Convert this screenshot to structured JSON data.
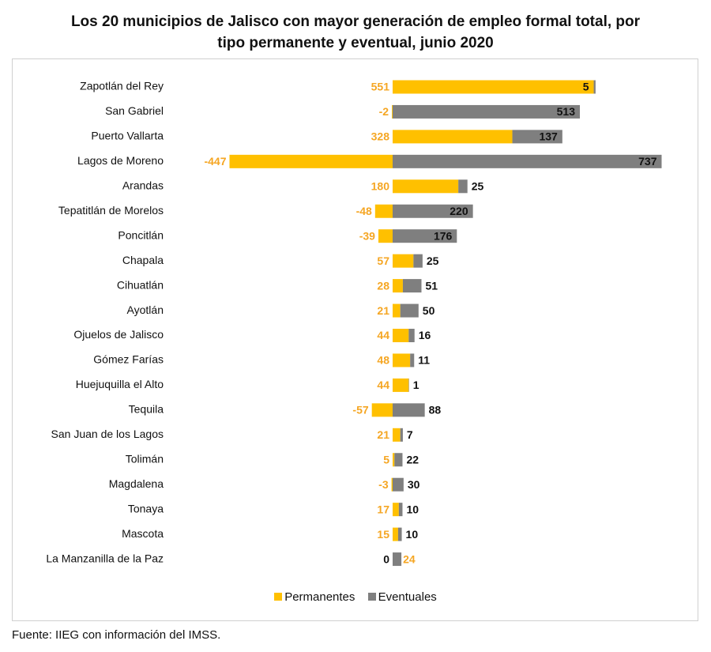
{
  "title_line1": "Los 20 municipios de Jalisco con mayor generación de empleo formal total, por",
  "title_line2": "tipo permanente y eventual, junio 2020",
  "source": "Fuente: IIEG con información del IMSS.",
  "colors": {
    "permanentes": "#FFC000",
    "eventuales": "#7F7F7F",
    "label_perm": "#F5A623"
  },
  "chart_data": {
    "type": "bar",
    "orientation": "horizontal",
    "stacked": true,
    "categories": [
      "Zapotlán del Rey",
      "San Gabriel",
      "Puerto Vallarta",
      "Lagos de Moreno",
      "Arandas",
      "Tepatitlán de Morelos",
      "Poncitlán",
      "Chapala",
      "Cihuatlán",
      "Ayotlán",
      "Ojuelos de Jalisco",
      "Gómez Farías",
      "Huejuquilla el Alto",
      "Tequila",
      "San Juan de los Lagos",
      "Tolimán",
      "Magdalena",
      "Tonaya",
      "Mascota",
      "La Manzanilla de la Paz"
    ],
    "series": [
      {
        "name": "Permanentes",
        "values": [
          551,
          -2,
          328,
          -447,
          180,
          -48,
          -39,
          57,
          28,
          21,
          44,
          48,
          44,
          -57,
          21,
          5,
          -3,
          17,
          15,
          0
        ]
      },
      {
        "name": "Eventuales",
        "values": [
          5,
          513,
          137,
          737,
          25,
          220,
          176,
          25,
          51,
          50,
          16,
          11,
          1,
          88,
          7,
          22,
          30,
          10,
          10,
          24
        ]
      }
    ],
    "legend_position": "bottom",
    "grid": false
  }
}
